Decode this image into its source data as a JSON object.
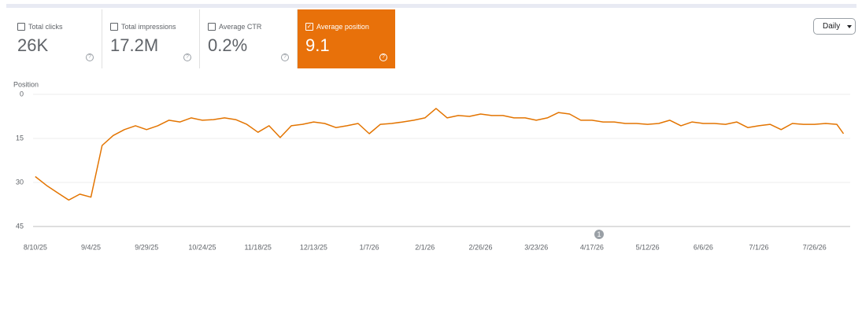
{
  "metrics": [
    {
      "label": "Total clicks",
      "value": "26K",
      "checked": false
    },
    {
      "label": "Total impressions",
      "value": "17.2M",
      "checked": false
    },
    {
      "label": "Average CTR",
      "value": "0.2%",
      "checked": false
    },
    {
      "label": "Average position",
      "value": "9.1",
      "checked": true
    }
  ],
  "period": "Daily",
  "chart_data": {
    "type": "line",
    "y_label": "Position",
    "color": "#e37400",
    "x": [
      "8/10/25",
      "8/15/25",
      "8/20/25",
      "8/25/25",
      "8/30/25",
      "9/4/25",
      "9/9/25",
      "9/14/25",
      "9/19/25",
      "9/24/25",
      "9/29/25",
      "10/4/25",
      "10/9/25",
      "10/14/25",
      "10/19/25",
      "10/24/25",
      "10/29/25",
      "11/3/25",
      "11/8/25",
      "11/13/25",
      "11/18/25",
      "11/23/25",
      "11/28/25",
      "12/3/25",
      "12/8/25",
      "12/13/25",
      "12/18/25",
      "12/23/25",
      "12/28/25",
      "1/2/26",
      "1/7/26",
      "1/12/26",
      "1/17/26",
      "1/22/26",
      "1/27/26",
      "2/1/26",
      "2/6/26",
      "2/11/26",
      "2/16/26",
      "2/21/26",
      "2/26/26",
      "3/3/26",
      "3/8/26",
      "3/13/26",
      "3/18/26",
      "3/23/26",
      "3/28/26",
      "4/2/26",
      "4/7/26",
      "4/12/26",
      "4/17/26",
      "4/22/26",
      "4/27/26",
      "5/2/26",
      "5/7/26",
      "5/12/26",
      "5/17/26",
      "5/22/26",
      "5/27/26",
      "6/1/26",
      "6/6/26",
      "6/11/26",
      "6/16/26",
      "6/21/26",
      "6/26/26",
      "7/1/26",
      "7/6/26",
      "7/11/26",
      "7/16/26",
      "7/21/26",
      "7/26/26",
      "7/31/26",
      "8/5/26",
      "8/8/26"
    ],
    "values": [
      28,
      31,
      33.5,
      36,
      34,
      35,
      17.4,
      14,
      12,
      10.7,
      12,
      10.7,
      8.8,
      9.4,
      8,
      8.8,
      8.6,
      8,
      8.6,
      10.2,
      12.9,
      10.7,
      14.7,
      10.7,
      10.2,
      9.4,
      9.9,
      11.3,
      10.7,
      9.9,
      13.4,
      10.2,
      9.9,
      9.4,
      8.8,
      8,
      4.8,
      8,
      7.2,
      7.5,
      6.7,
      7.2,
      7.2,
      8,
      8,
      8.8,
      8,
      6.2,
      6.7,
      8.8,
      8.8,
      9.4,
      9.4,
      9.9,
      9.9,
      10.2,
      9.9,
      8.8,
      10.7,
      9.4,
      9.9,
      9.9,
      10.2,
      9.4,
      11.3,
      10.7,
      10.2,
      12,
      9.9,
      10.2,
      10.2,
      9.9,
      10.2,
      13.4
    ],
    "xlim": [
      "8/9/25",
      "8/11/26"
    ],
    "xticks": [
      "8/10/25",
      "9/4/25",
      "9/29/25",
      "10/24/25",
      "11/18/25",
      "12/13/25",
      "1/7/26",
      "2/1/26",
      "2/26/26",
      "3/23/26",
      "4/17/26",
      "5/12/26",
      "6/6/26",
      "7/1/26",
      "7/26/26"
    ],
    "ylim": [
      0,
      45
    ],
    "y_inverted": true,
    "yticks": [
      0,
      15,
      30,
      45
    ],
    "grid": true,
    "annotations": [
      "1"
    ]
  }
}
